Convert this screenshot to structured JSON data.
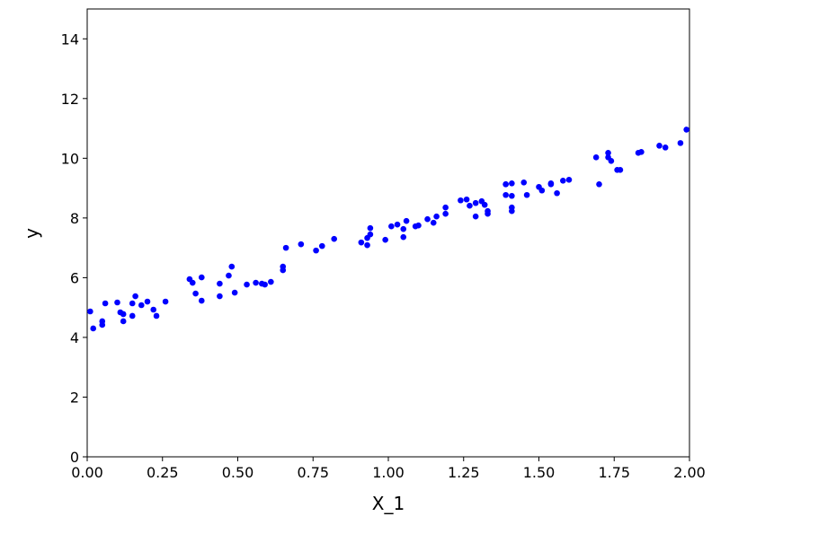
{
  "chart_data": {
    "type": "scatter",
    "x_label": "X_1",
    "y_label": "y",
    "color": "#0000ff",
    "xlim": [
      0,
      2
    ],
    "ylim": [
      0,
      15
    ],
    "xticks": [
      {
        "value": 0,
        "label": "0.00"
      },
      0.25,
      {
        "value": 0.5,
        "label": "0.50"
      },
      0.75,
      {
        "value": 1,
        "label": "1.00"
      },
      1.25,
      {
        "value": 1.5,
        "label": "1.50"
      },
      1.75,
      {
        "value": 2,
        "label": "2.00"
      }
    ],
    "yticks": [
      0,
      2,
      4,
      6,
      8,
      10,
      12,
      14
    ],
    "x": [
      0.01,
      0.02,
      0.05,
      0.06,
      0.05,
      0.1,
      0.11,
      0.12,
      0.12,
      0.15,
      0.15,
      0.16,
      0.18,
      0.2,
      0.22,
      0.23,
      0.26,
      0.34,
      0.35,
      0.36,
      0.38,
      0.38,
      0.44,
      0.44,
      0.47,
      0.48,
      0.49,
      0.53,
      0.56,
      0.58,
      0.59,
      0.61,
      0.65,
      0.65,
      0.66,
      0.71,
      0.76,
      0.78,
      0.82,
      0.91,
      0.93,
      0.93,
      0.94,
      0.94,
      0.99,
      1.01,
      1.03,
      1.05,
      1.05,
      1.06,
      1.09,
      1.1,
      1.13,
      1.15,
      1.16,
      1.19,
      1.19,
      1.24,
      1.26,
      1.27,
      1.29,
      1.29,
      1.31,
      1.32,
      1.33,
      1.33,
      1.39,
      1.39,
      1.39,
      1.41,
      1.41,
      1.41,
      1.41,
      1.45,
      1.46,
      1.5,
      1.51,
      1.54,
      1.54,
      1.56,
      1.58,
      1.6,
      1.69,
      1.7,
      1.73,
      1.73,
      1.74,
      1.76,
      1.77,
      1.83,
      1.84,
      1.9,
      1.92,
      1.97,
      1.99
    ],
    "y": [
      4.87,
      4.3,
      4.54,
      5.14,
      4.42,
      5.17,
      4.84,
      4.78,
      4.54,
      5.14,
      4.72,
      5.38,
      5.08,
      5.2,
      4.93,
      4.72,
      5.2,
      5.95,
      5.83,
      5.47,
      6.01,
      5.23,
      5.8,
      5.38,
      6.07,
      6.37,
      5.5,
      5.77,
      5.83,
      5.8,
      5.77,
      5.86,
      6.25,
      6.37,
      7.0,
      7.12,
      6.91,
      7.06,
      7.3,
      7.18,
      7.09,
      7.33,
      7.66,
      7.45,
      7.27,
      7.72,
      7.78,
      7.36,
      7.63,
      7.9,
      7.72,
      7.75,
      7.96,
      7.84,
      8.05,
      8.14,
      8.35,
      8.59,
      8.62,
      8.41,
      8.5,
      8.05,
      8.56,
      8.44,
      8.23,
      8.14,
      9.13,
      8.77,
      9.13,
      8.74,
      8.35,
      8.23,
      9.16,
      9.19,
      8.77,
      9.04,
      8.92,
      9.13,
      9.16,
      8.83,
      9.25,
      9.28,
      10.03,
      9.13,
      10.18,
      10.03,
      9.91,
      9.61,
      9.61,
      10.18,
      10.21,
      10.42,
      10.36,
      10.51,
      10.96
    ]
  }
}
